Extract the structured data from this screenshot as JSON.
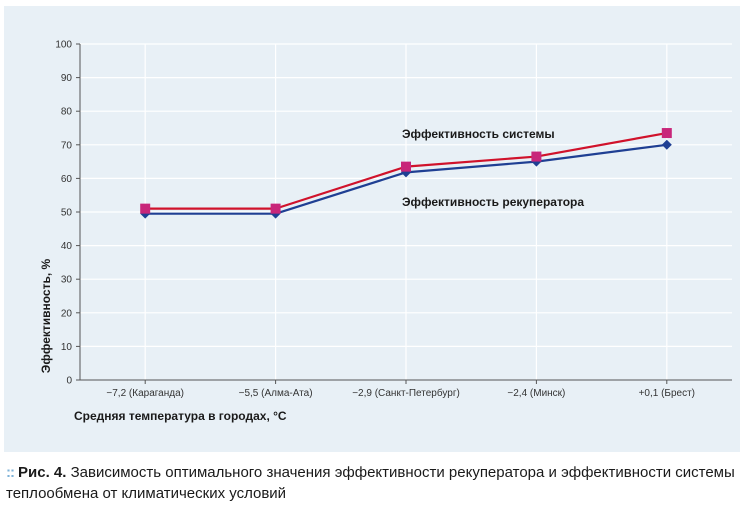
{
  "chart_data": {
    "type": "line",
    "categories": [
      "−7,2 (Караганда)",
      "−5,5 (Алма-Ата)",
      "−2,9 (Санкт-Петербург)",
      "−2,4 (Минск)",
      "+0,1 (Брест)"
    ],
    "series": [
      {
        "name": "Эффективность системы",
        "values": [
          51,
          51,
          63.5,
          66.5,
          73.5
        ],
        "color": "#d0122b",
        "marker_color": "#c8267a",
        "marker": "square"
      },
      {
        "name": "Эффективность рекуператора",
        "values": [
          49.5,
          49.5,
          61.8,
          65,
          70
        ],
        "color": "#1f3f93",
        "marker_color": "#1f3f93",
        "marker": "diamond"
      }
    ],
    "xlabel": "Средняя температура в городах, °С",
    "ylabel": "Эффективность, %",
    "ylim": [
      0,
      100
    ],
    "yticks": [
      0,
      10,
      20,
      30,
      40,
      50,
      60,
      70,
      80,
      90,
      100
    ],
    "grid": true
  },
  "caption": {
    "icon": "dots-icon",
    "dots": "::",
    "label": "Рис. 4.",
    "text": "Зависимость оптимального значения эффективности рекуператора и эффективности системы теплообмена от климатических условий"
  }
}
